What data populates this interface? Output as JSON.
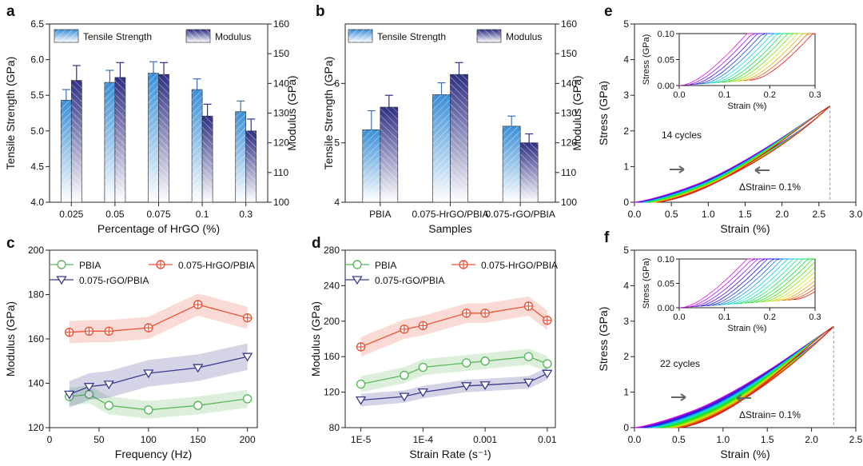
{
  "panels": {
    "a": "a",
    "b": "b",
    "c": "c",
    "d": "d",
    "e": "e",
    "f": "f"
  },
  "chart_data": [
    {
      "id": "a",
      "type": "bar",
      "xlabel": "Percentage of HrGO (%)",
      "ylabel_left": "Tensile Strength (GPa)",
      "ylabel_right": "Modulus (GPa)",
      "categories": [
        "0.025",
        "0.05",
        "0.075",
        "0.1",
        "0.3"
      ],
      "ylim_left": [
        4.0,
        6.5
      ],
      "yticks_left": [
        "4.0",
        "4.5",
        "5.0",
        "5.5",
        "6.0",
        "6.5"
      ],
      "ylim_right": [
        100,
        160
      ],
      "yticks_right": [
        "100",
        "110",
        "120",
        "130",
        "140",
        "150",
        "160"
      ],
      "series": [
        {
          "name": "Tensile Strength",
          "axis": "left",
          "values": [
            5.43,
            5.68,
            5.81,
            5.58,
            5.27
          ],
          "errors": [
            0.15,
            0.17,
            0.16,
            0.15,
            0.15
          ]
        },
        {
          "name": "Modulus",
          "axis": "right",
          "values": [
            141,
            142,
            143,
            129,
            124
          ],
          "errors": [
            5,
            5,
            4,
            4,
            4
          ]
        }
      ],
      "legend": [
        "Tensile Strength",
        "Modulus"
      ]
    },
    {
      "id": "b",
      "type": "bar",
      "xlabel": "Samples",
      "ylabel_left": "Tensile Strength (GPa)",
      "ylabel_right": "Modulus (GPa)",
      "categories": [
        "PBIA",
        "0.075-HrGO/PBIA",
        "0.075-rGO/PBIA"
      ],
      "ylim_left": [
        4,
        7
      ],
      "yticks_left": [
        "4",
        "5",
        "6"
      ],
      "ylim_right": [
        100,
        160
      ],
      "yticks_right": [
        "100",
        "110",
        "120",
        "130",
        "140",
        "150",
        "160"
      ],
      "series": [
        {
          "name": "Tensile Strength",
          "axis": "left",
          "values": [
            5.22,
            5.81,
            5.28
          ],
          "errors": [
            0.32,
            0.2,
            0.17
          ]
        },
        {
          "name": "Modulus",
          "axis": "right",
          "values": [
            132,
            143,
            120
          ],
          "errors": [
            4,
            4,
            3
          ]
        }
      ],
      "legend": [
        "Tensile Strength",
        "Modulus"
      ]
    },
    {
      "id": "c",
      "type": "line",
      "xlabel": "Frequency (Hz)",
      "ylabel": "Modulus (GPa)",
      "xlim": [
        0,
        210
      ],
      "xticks": [
        "0",
        "50",
        "100",
        "150",
        "200"
      ],
      "ylim": [
        120,
        200
      ],
      "yticks": [
        "120",
        "140",
        "160",
        "180",
        "200"
      ],
      "series": [
        {
          "name": "PBIA",
          "color": "#5cb85c",
          "marker": "circle",
          "x": [
            20,
            40,
            60,
            100,
            150,
            200
          ],
          "y": [
            134,
            135,
            130,
            128,
            130,
            133
          ],
          "band": 4
        },
        {
          "name": "0.075-HrGO/PBIA",
          "color": "#e8553a",
          "marker": "diamond",
          "x": [
            20,
            40,
            60,
            100,
            150,
            200
          ],
          "y": [
            163,
            163.5,
            163.5,
            165,
            175.5,
            169.5
          ],
          "band": 5
        },
        {
          "name": "0.075-rGO/PBIA",
          "color": "#3c3b8c",
          "marker": "triangle",
          "x": [
            20,
            40,
            60,
            100,
            150,
            200
          ],
          "y": [
            135,
            138.5,
            139.5,
            144.5,
            147,
            152
          ],
          "band": 6
        }
      ]
    },
    {
      "id": "d",
      "type": "line",
      "xlabel": "Strain Rate (s⁻¹)",
      "ylabel": "Modulus (GPa)",
      "xscale": "log",
      "xlim": [
        5.6e-06,
        0.0135
      ],
      "xticks": [
        "1E-5",
        "1E-4",
        "0.001",
        "0.01"
      ],
      "ylim": [
        80,
        280
      ],
      "yticks": [
        "80",
        "120",
        "160",
        "200",
        "240",
        "280"
      ],
      "series": [
        {
          "name": "PBIA",
          "color": "#5cb85c",
          "marker": "circle",
          "x": [
            1e-05,
            5e-05,
            0.0001,
            0.0005,
            0.001,
            0.005,
            0.01
          ],
          "y": [
            129,
            139,
            148,
            153,
            155,
            160,
            152
          ],
          "band": 9
        },
        {
          "name": "0.075-HrGO/PBIA",
          "color": "#e8553a",
          "marker": "diamond",
          "x": [
            1e-05,
            5e-05,
            0.0001,
            0.0005,
            0.001,
            0.005,
            0.01
          ],
          "y": [
            171,
            191,
            195,
            209,
            209,
            217,
            201
          ],
          "band": 11
        },
        {
          "name": "0.075-rGO/PBIA",
          "color": "#3c3b8c",
          "marker": "triangle",
          "x": [
            1e-05,
            5e-05,
            0.0001,
            0.0005,
            0.001,
            0.005,
            0.01
          ],
          "y": [
            111,
            115,
            120,
            127,
            128,
            131,
            141
          ],
          "band": 7
        }
      ]
    },
    {
      "id": "e",
      "type": "line",
      "xlabel": "Strain (%)",
      "ylabel": "Stress (GPa)",
      "xlim": [
        0,
        3.0
      ],
      "xticks": [
        "0.0",
        "0.5",
        "1.0",
        "1.5",
        "2.0",
        "2.5",
        "3.0"
      ],
      "ylim": [
        0,
        5
      ],
      "yticks": [
        "0",
        "1",
        "2",
        "3",
        "4",
        "5"
      ],
      "peak": [
        2.65,
        2.7
      ],
      "cycles": 14,
      "annotation_cycles": "14 cycles",
      "annotation_strain": "ΔStrain= 0.1%",
      "inset": {
        "xlabel": "Strain (%)",
        "ylabel": "Stress (GPa)",
        "xlim": [
          0,
          0.3
        ],
        "ylim": [
          0,
          0.1
        ],
        "xticks": [
          "0.0",
          "0.1",
          "0.2",
          "0.3"
        ],
        "yticks": [
          "0.00",
          "0.05",
          "0.10"
        ]
      }
    },
    {
      "id": "f",
      "type": "line",
      "xlabel": "Strain (%)",
      "ylabel": "Stress (GPa)",
      "xlim": [
        0,
        2.5
      ],
      "xticks": [
        "0.0",
        "0.5",
        "1.0",
        "1.5",
        "2.0",
        "2.5"
      ],
      "ylim": [
        0,
        5
      ],
      "yticks": [
        "0",
        "1",
        "2",
        "3",
        "4",
        "5"
      ],
      "peak": [
        2.25,
        2.85
      ],
      "cycles": 22,
      "annotation_cycles": "22 cycles",
      "annotation_strain": "ΔStrain= 0.1%",
      "inset": {
        "xlabel": "Strain (%)",
        "ylabel": "Stress (GPa)",
        "xlim": [
          0,
          0.3
        ],
        "ylim": [
          0,
          0.1
        ],
        "xticks": [
          "0.0",
          "0.1",
          "0.2",
          "0.3"
        ],
        "yticks": [
          "0.00",
          "0.05",
          "0.10"
        ]
      }
    }
  ]
}
